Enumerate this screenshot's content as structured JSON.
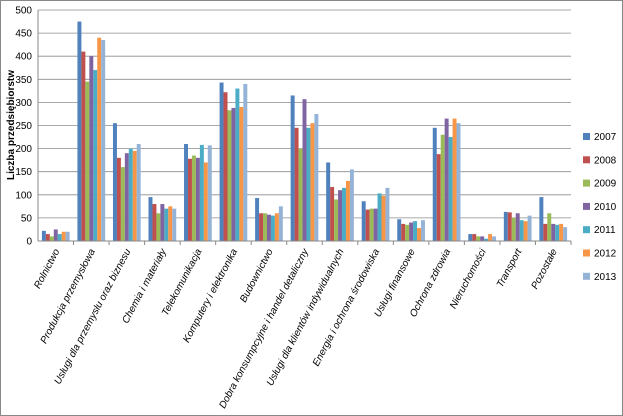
{
  "chart_data": {
    "type": "bar",
    "y_label": "Liczba przedsiębiorstw",
    "categories": [
      "Rolnictwo",
      "Produkcja przemysłowa",
      "Usługi dla przemysłu oraz biznesu",
      "Chemia i materiały",
      "Telekomunikacja",
      "Komputery i elektronika",
      "Budownictwo",
      "Dobra konsumpcyjne i handel detaliczny",
      "Usługi dla klientów indywidualnych",
      "Energia i ochrona środowiska",
      "Usługi finansowe",
      "Ochrona zdrowia",
      "Nieruchomości",
      "Transport",
      "Pozostałe"
    ],
    "series": [
      {
        "name": "2007",
        "color": "#4F81BD",
        "values": [
          22,
          475,
          255,
          95,
          210,
          343,
          93,
          315,
          170,
          86,
          47,
          245,
          15,
          63,
          95
        ]
      },
      {
        "name": "2008",
        "color": "#C0504D",
        "values": [
          15,
          410,
          180,
          80,
          178,
          322,
          60,
          245,
          117,
          68,
          37,
          188,
          15,
          62,
          37
        ]
      },
      {
        "name": "2009",
        "color": "#9BBB59",
        "values": [
          10,
          345,
          160,
          60,
          185,
          283,
          60,
          200,
          90,
          70,
          35,
          230,
          10,
          50,
          60
        ]
      },
      {
        "name": "2010",
        "color": "#8064A2",
        "values": [
          25,
          400,
          190,
          80,
          180,
          288,
          57,
          307,
          110,
          70,
          40,
          265,
          10,
          60,
          37
        ]
      },
      {
        "name": "2011",
        "color": "#4BACC6",
        "values": [
          15,
          370,
          200,
          70,
          208,
          330,
          55,
          245,
          115,
          103,
          43,
          225,
          5,
          45,
          35
        ]
      },
      {
        "name": "2012",
        "color": "#F79646",
        "values": [
          20,
          440,
          195,
          75,
          170,
          290,
          60,
          255,
          130,
          98,
          28,
          265,
          15,
          43,
          37
        ]
      },
      {
        "name": "2013",
        "color": "#95B3D7",
        "values": [
          20,
          435,
          210,
          70,
          207,
          340,
          75,
          275,
          155,
          115,
          45,
          255,
          10,
          55,
          30
        ]
      }
    ],
    "ylim": [
      0,
      500
    ],
    "yticks": [
      0,
      50,
      100,
      150,
      200,
      250,
      300,
      350,
      400,
      450,
      500
    ],
    "grid": true,
    "legend": "right"
  }
}
